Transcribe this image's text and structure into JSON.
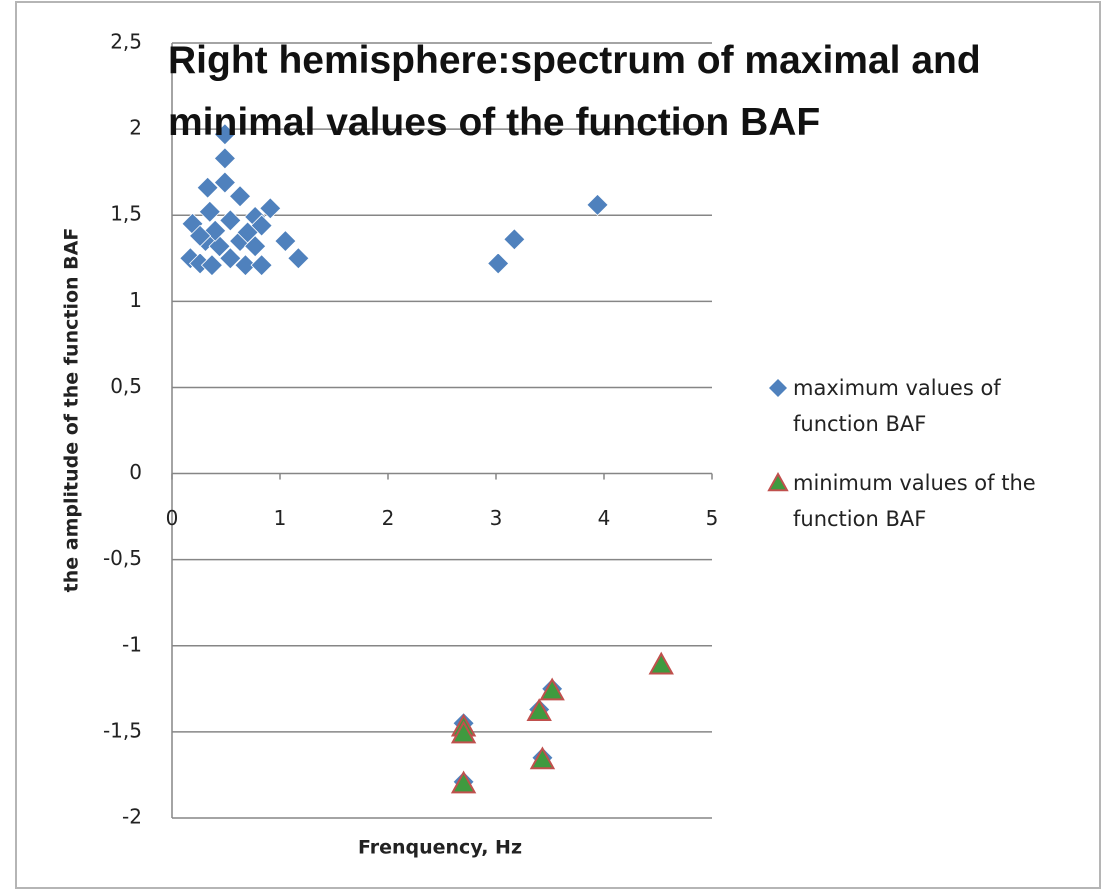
{
  "chart_data": {
    "type": "scatter",
    "title": "Right hemisphere:spectrum of maximal and minimal values of the function BAF",
    "x_label": "Frenquency, Hz",
    "y_label": "the amplitude of the function  BAF",
    "xlim": [
      0,
      5
    ],
    "xticks": [
      0,
      1,
      2,
      3,
      4,
      5
    ],
    "ylim": [
      -2,
      2.5
    ],
    "yticks": [
      {
        "value": 2.5,
        "label": "2,5"
      },
      2,
      {
        "value": 1.5,
        "label": "1,5"
      },
      1,
      {
        "value": 0.5,
        "label": "0,5"
      },
      0,
      {
        "value": -0.5,
        "label": "-0,5"
      },
      -1,
      {
        "value": -1.5,
        "label": "-1,5"
      },
      -2
    ],
    "grid": true,
    "legend": "right",
    "series": [
      {
        "name": "maximum values of function BAF",
        "color": "#4f81bd",
        "marker": "diamond",
        "x": [
          0.49,
          0.49,
          0.33,
          0.49,
          0.63,
          0.19,
          0.35,
          0.54,
          0.91,
          0.77,
          0.83,
          0.17,
          0.26,
          0.37,
          0.54,
          0.68,
          0.83,
          1.05,
          1.17,
          0.31,
          0.44,
          0.63,
          0.77,
          0.4,
          0.7,
          0.26,
          3.02,
          3.17,
          3.94,
          2.7,
          2.7,
          3.4,
          3.43,
          3.52
        ],
        "values": [
          1.97,
          1.83,
          1.66,
          1.69,
          1.61,
          1.45,
          1.52,
          1.47,
          1.54,
          1.49,
          1.44,
          1.25,
          1.22,
          1.21,
          1.25,
          1.21,
          1.21,
          1.35,
          1.25,
          1.35,
          1.32,
          1.35,
          1.32,
          1.41,
          1.4,
          1.38,
          1.22,
          1.36,
          1.56,
          -1.45,
          -1.79,
          -1.37,
          -1.65,
          -1.25
        ]
      },
      {
        "name": "minimum values of the function BAF",
        "color": "#3f9a3f",
        "edgecolor": "#c0504d",
        "marker": "triangle",
        "x": [
          2.7,
          2.7,
          2.7,
          3.4,
          3.43,
          3.52,
          4.53
        ],
        "values": [
          -1.47,
          -1.51,
          -1.8,
          -1.38,
          -1.66,
          -1.26,
          -1.11
        ]
      }
    ]
  }
}
